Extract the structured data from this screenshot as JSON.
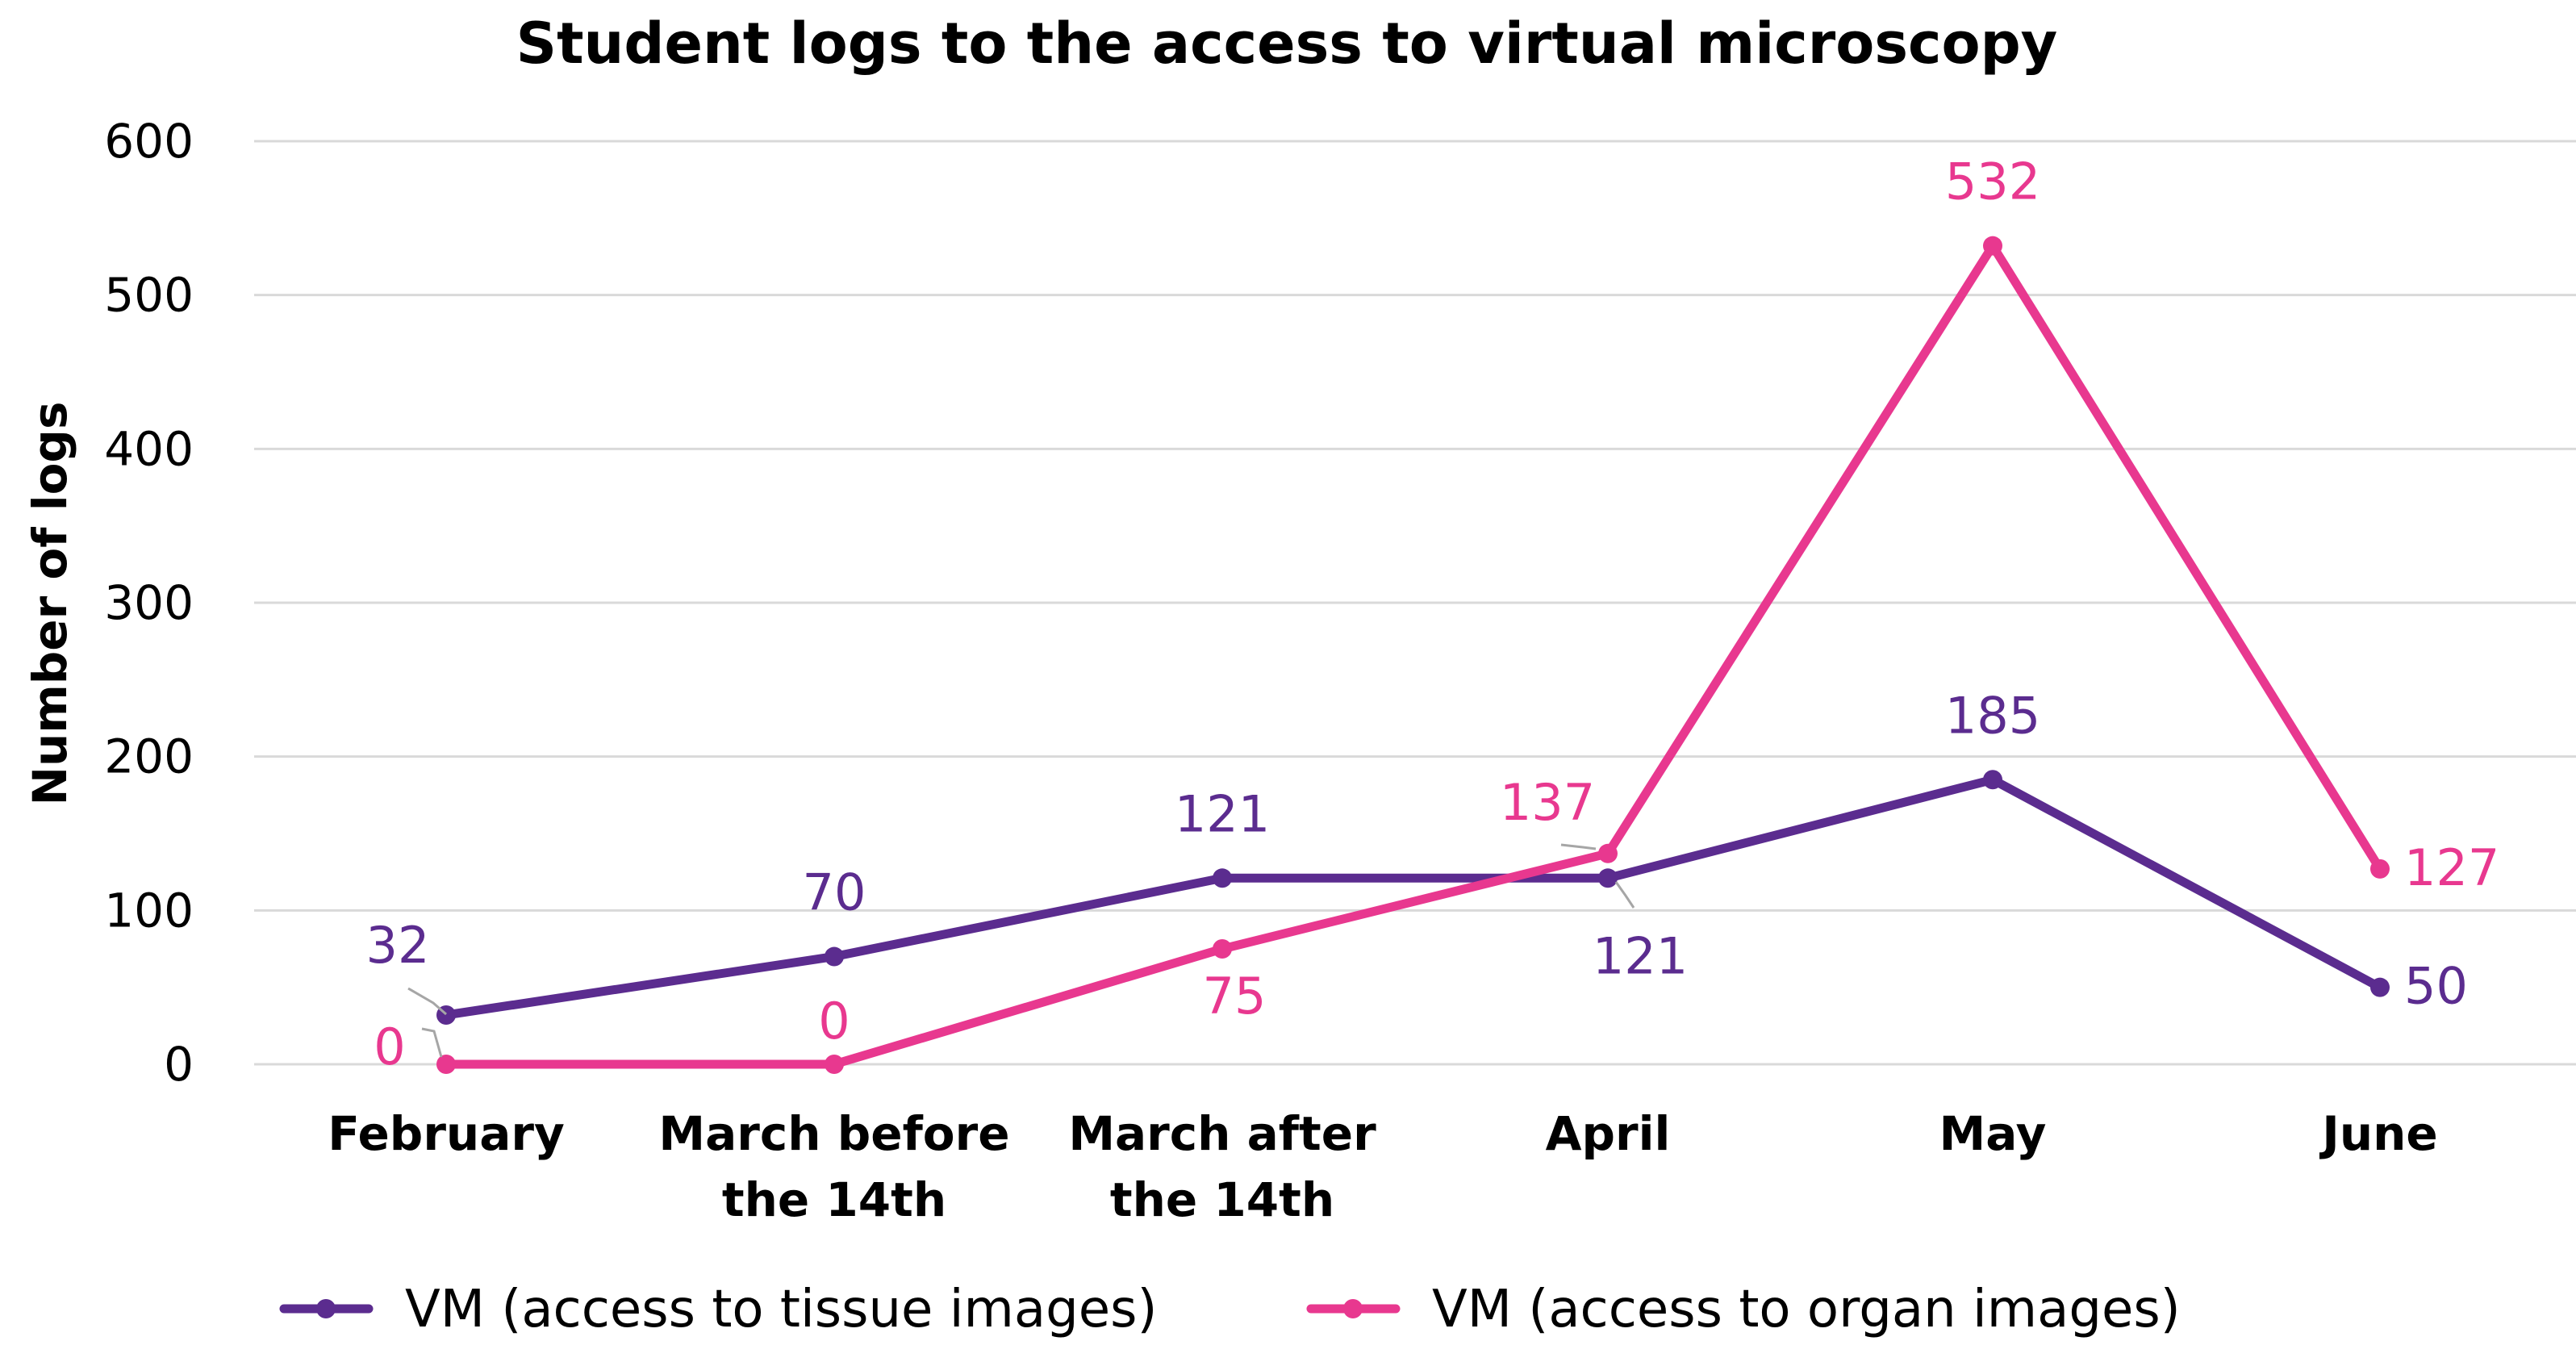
{
  "chart_data": {
    "type": "line",
    "title": "Student logs to the access to virtual microscopy",
    "xlabel": "",
    "ylabel": "Number of logs",
    "ylim": [
      0,
      600
    ],
    "yticks": [
      0,
      100,
      200,
      300,
      400,
      500,
      600
    ],
    "grid": true,
    "legend_position": "bottom",
    "categories": [
      [
        "February"
      ],
      [
        "March before",
        "the 14th"
      ],
      [
        "March after",
        "the 14th"
      ],
      [
        "April"
      ],
      [
        "May"
      ],
      [
        "June"
      ]
    ],
    "series": [
      {
        "name": "VM (access to tissue images)",
        "color": "#5b2c8f",
        "values": [
          32,
          70,
          121,
          121,
          185,
          50
        ],
        "labels": [
          "32",
          "70",
          "121",
          "121",
          "185",
          "50"
        ]
      },
      {
        "name": "VM (access to organ images)",
        "color": "#e8388f",
        "values": [
          0,
          0,
          75,
          137,
          532,
          127
        ],
        "labels": [
          "0",
          "0",
          "75",
          "137",
          "532",
          "127"
        ]
      }
    ]
  }
}
